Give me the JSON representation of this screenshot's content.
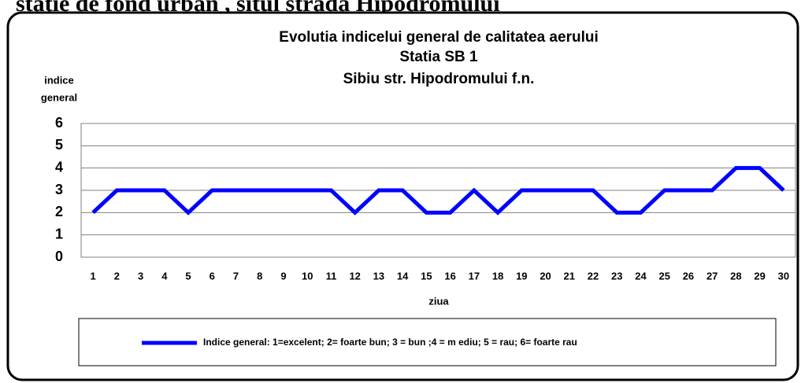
{
  "page_heading": "staţie de fond urban , situl strada Hipodromului",
  "chart_data": {
    "type": "line",
    "title": [
      "Evolutia  indicelui  general de calitatea aerului",
      "Statia SB 1",
      "Sibiu str. Hipodromului f.n."
    ],
    "ylabel": [
      "indice",
      "general"
    ],
    "xlabel": "ziua",
    "categories": [
      "1",
      "2",
      "3",
      "4",
      "5",
      "6",
      "7",
      "8",
      "9",
      "10",
      "11",
      "12",
      "13",
      "14",
      "15",
      "16",
      "17",
      "18",
      "19",
      "20",
      "21",
      "22",
      "23",
      "24",
      "25",
      "26",
      "27",
      "28",
      "29",
      "30"
    ],
    "series": [
      {
        "name": "Indice general: 1=excelent; 2= foarte bun; 3 = bun ;4 = m ediu; 5 = rau; 6= foarte rau",
        "color": "#0000ff",
        "values": [
          2,
          3,
          3,
          3,
          2,
          3,
          3,
          3,
          3,
          3,
          3,
          2,
          3,
          3,
          2,
          2,
          3,
          2,
          3,
          3,
          3,
          3,
          2,
          2,
          3,
          3,
          3,
          4,
          4,
          3
        ]
      }
    ],
    "ylim": [
      0,
      6
    ],
    "yticks": [
      0,
      1,
      2,
      3,
      4,
      5,
      6
    ],
    "grid": true
  }
}
